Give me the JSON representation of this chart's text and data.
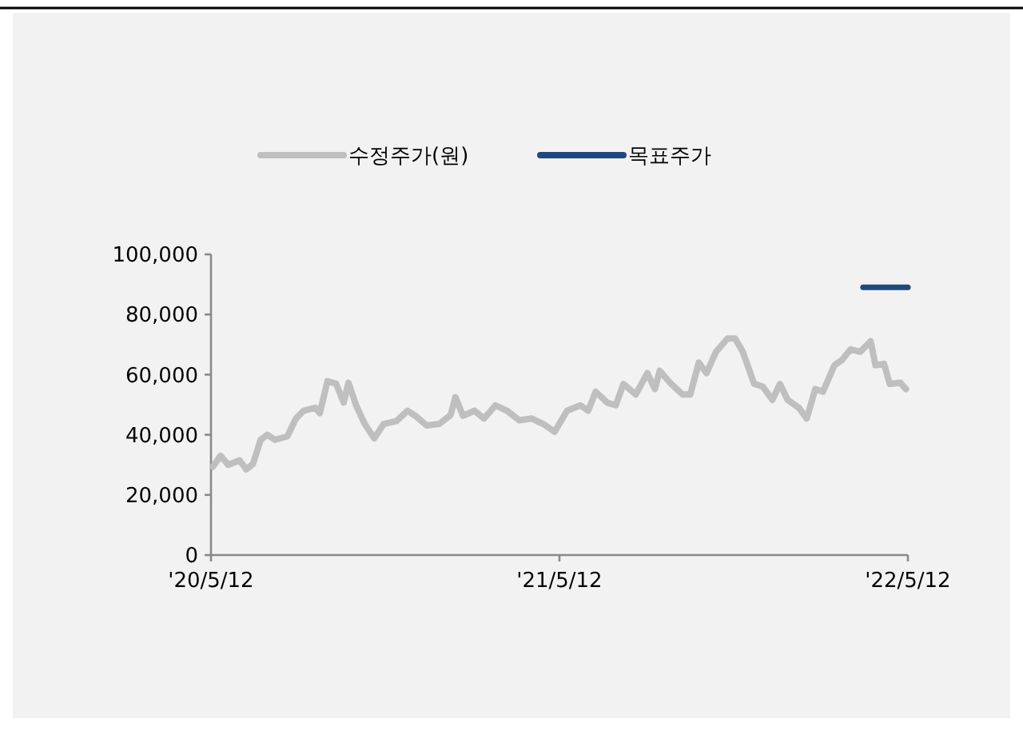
{
  "chart_data": {
    "type": "line",
    "legend": "top",
    "grid": false,
    "xlim": [
      "2020-05-12",
      "2022-05-12"
    ],
    "xticks": [
      {
        "value": "2020-05-12",
        "label": "'20/5/12"
      },
      {
        "value": "2021-05-12",
        "label": "'21/5/12"
      },
      {
        "value": "2022-05-12",
        "label": "'22/5/12"
      }
    ],
    "ylim": [
      0,
      100000
    ],
    "yticks": [
      {
        "value": 0,
        "label": "0"
      },
      {
        "value": 20000,
        "label": "20,000"
      },
      {
        "value": 40000,
        "label": "40,000"
      },
      {
        "value": 60000,
        "label": "60,000"
      },
      {
        "value": 80000,
        "label": "80,000"
      },
      {
        "value": 100000,
        "label": "100,000"
      }
    ],
    "series": [
      {
        "name": "수정주가(원)",
        "color": "#bfbfbf",
        "x": [
          "2020-05-14",
          "2020-05-22",
          "2020-05-30",
          "2020-06-11",
          "2020-06-18",
          "2020-06-25",
          "2020-07-03",
          "2020-07-10",
          "2020-07-18",
          "2020-07-31",
          "2020-08-09",
          "2020-08-17",
          "2020-08-29",
          "2020-09-03",
          "2020-09-11",
          "2020-09-20",
          "2020-09-28",
          "2020-10-03",
          "2020-10-11",
          "2020-10-20",
          "2020-10-30",
          "2020-11-09",
          "2020-11-22",
          "2020-12-04",
          "2020-12-12",
          "2020-12-24",
          "2021-01-06",
          "2021-01-18",
          "2021-01-23",
          "2021-01-31",
          "2021-02-12",
          "2021-02-22",
          "2021-03-06",
          "2021-03-18",
          "2021-03-31",
          "2021-04-13",
          "2021-04-25",
          "2021-05-07",
          "2021-05-20",
          "2021-06-03",
          "2021-06-11",
          "2021-06-19",
          "2021-07-01",
          "2021-07-10",
          "2021-07-18",
          "2021-07-31",
          "2021-08-12",
          "2021-08-20",
          "2021-08-25",
          "2021-09-06",
          "2021-09-18",
          "2021-09-26",
          "2021-10-05",
          "2021-10-13",
          "2021-10-23",
          "2021-11-04",
          "2021-11-12",
          "2021-11-20",
          "2021-12-02",
          "2021-12-11",
          "2021-12-21",
          "2021-12-29",
          "2022-01-06",
          "2022-01-18",
          "2022-01-26",
          "2022-02-04",
          "2022-02-12",
          "2022-02-24",
          "2022-03-04",
          "2022-03-13",
          "2022-03-23",
          "2022-04-03",
          "2022-04-08",
          "2022-04-17",
          "2022-04-23",
          "2022-05-04",
          "2022-05-10"
        ],
        "values": [
          29400,
          33000,
          30000,
          31500,
          28500,
          30300,
          38300,
          40000,
          38300,
          39500,
          45400,
          48000,
          49000,
          47200,
          57800,
          57000,
          50700,
          57300,
          49800,
          43600,
          38800,
          43600,
          44500,
          48000,
          46300,
          43100,
          43600,
          46600,
          52500,
          46300,
          48000,
          45400,
          49800,
          48000,
          44800,
          45400,
          43600,
          41000,
          48000,
          49800,
          48000,
          54300,
          50700,
          49800,
          56900,
          53400,
          60500,
          55200,
          61300,
          56900,
          53400,
          53400,
          64000,
          60500,
          67600,
          72000,
          72000,
          67600,
          56900,
          56000,
          51600,
          56900,
          51600,
          48900,
          45400,
          55200,
          54300,
          63100,
          64900,
          68400,
          67600,
          71100,
          63100,
          63600,
          56900,
          57300,
          55200
        ]
      },
      {
        "name": "목표주가",
        "color": "#1f497d",
        "x": [
          "2022-03-26",
          "2022-05-12"
        ],
        "values": [
          89000,
          89000
        ]
      }
    ]
  }
}
